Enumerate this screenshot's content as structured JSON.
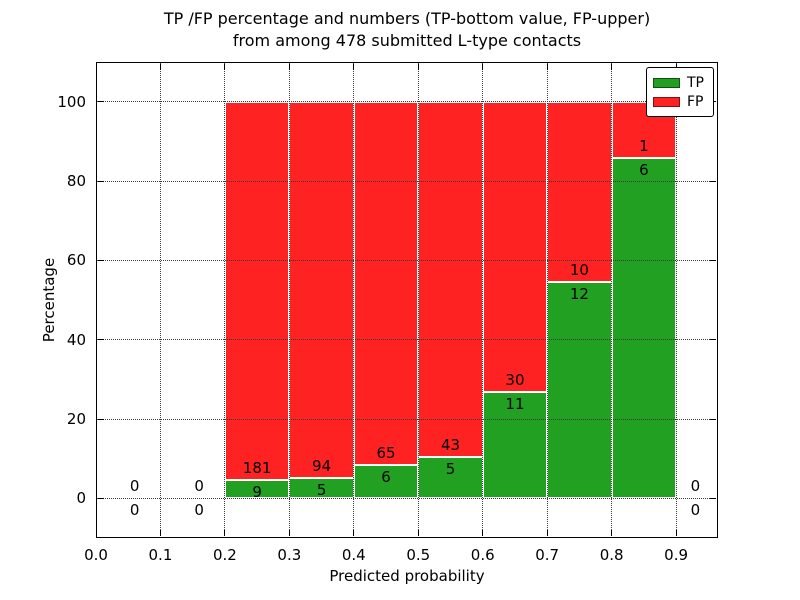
{
  "title": {
    "line1": "TP /FP percentage and numbers (TP-bottom value, FP-upper)",
    "line2": "from among 478 submitted L-type contacts"
  },
  "axes": {
    "xlabel": "Predicted probability",
    "ylabel": "Percentage",
    "xticks": [
      "0.0",
      "0.1",
      "0.2",
      "0.3",
      "0.4",
      "0.5",
      "0.6",
      "0.7",
      "0.8",
      "0.9"
    ],
    "yticks": [
      "0",
      "20",
      "40",
      "60",
      "80",
      "100"
    ],
    "xlim": [
      0,
      0.965
    ],
    "ylim": [
      -10,
      110
    ],
    "grid": "dotted"
  },
  "legend": {
    "position": "upper right",
    "items": [
      {
        "label": "TP",
        "color": "#22a022"
      },
      {
        "label": "FP",
        "color": "#ff2222"
      }
    ]
  },
  "chart_data": {
    "type": "bar",
    "stacked": true,
    "title": "TP /FP percentage and numbers (TP-bottom value, FP-upper) from among 478 submitted L-type contacts",
    "xlabel": "Predicted probability",
    "ylabel": "Percentage",
    "total_contacts": 478,
    "bin_width": 0.1,
    "colors": {
      "tp": "#22a022",
      "fp": "#ff2222",
      "bar_edge": "#ffffff"
    },
    "bins": [
      {
        "x0": 0.0,
        "x1": 0.1,
        "tp_count": 0,
        "fp_count": 0,
        "tp_pct": 0,
        "fp_pct": 0,
        "label_x": 0.06
      },
      {
        "x0": 0.1,
        "x1": 0.2,
        "tp_count": 0,
        "fp_count": 0,
        "tp_pct": 0,
        "fp_pct": 0,
        "label_x": 0.16
      },
      {
        "x0": 0.2,
        "x1": 0.3,
        "tp_count": 9,
        "fp_count": 181,
        "tp_pct": 4.74,
        "fp_pct": 95.26
      },
      {
        "x0": 0.3,
        "x1": 0.4,
        "tp_count": 5,
        "fp_count": 94,
        "tp_pct": 5.05,
        "fp_pct": 94.95
      },
      {
        "x0": 0.4,
        "x1": 0.5,
        "tp_count": 6,
        "fp_count": 65,
        "tp_pct": 8.45,
        "fp_pct": 91.55
      },
      {
        "x0": 0.5,
        "x1": 0.6,
        "tp_count": 5,
        "fp_count": 43,
        "tp_pct": 10.42,
        "fp_pct": 89.58
      },
      {
        "x0": 0.6,
        "x1": 0.7,
        "tp_count": 11,
        "fp_count": 30,
        "tp_pct": 26.83,
        "fp_pct": 73.17
      },
      {
        "x0": 0.7,
        "x1": 0.8,
        "tp_count": 12,
        "fp_count": 10,
        "tp_pct": 54.55,
        "fp_pct": 45.45
      },
      {
        "x0": 0.8,
        "x1": 0.9,
        "tp_count": 6,
        "fp_count": 1,
        "tp_pct": 85.71,
        "fp_pct": 14.29
      },
      {
        "x0": 0.9,
        "x1": 1.0,
        "tp_count": 0,
        "fp_count": 0,
        "tp_pct": 0,
        "fp_pct": 0,
        "label_x": 0.93
      }
    ]
  }
}
